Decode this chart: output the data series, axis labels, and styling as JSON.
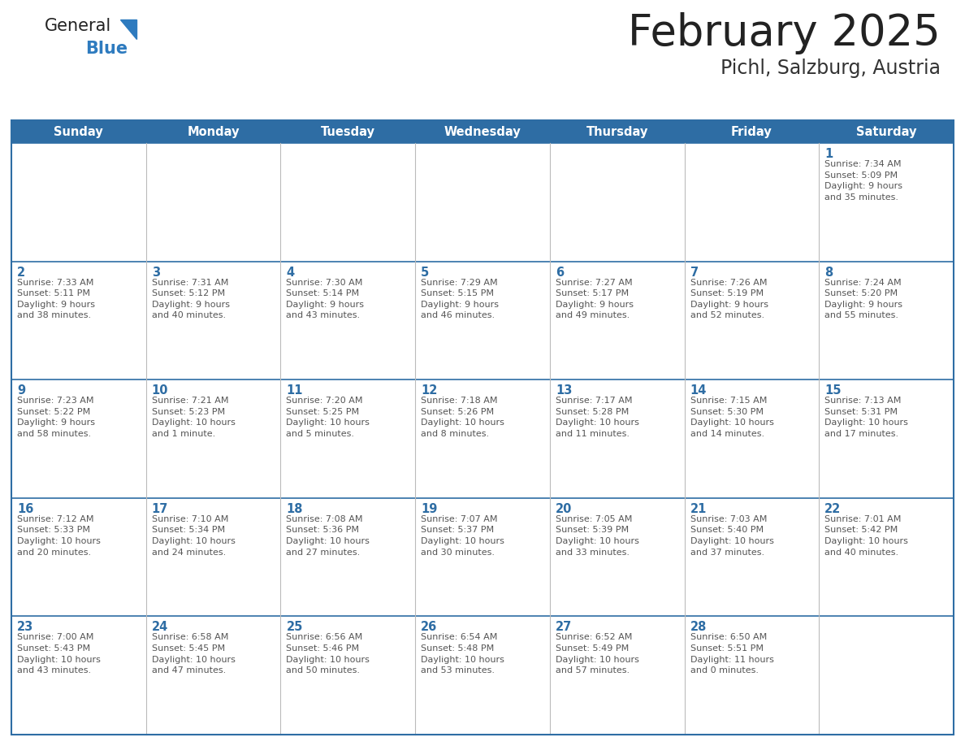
{
  "title": "February 2025",
  "subtitle": "Pichl, Salzburg, Austria",
  "days_of_week": [
    "Sunday",
    "Monday",
    "Tuesday",
    "Wednesday",
    "Thursday",
    "Friday",
    "Saturday"
  ],
  "header_bg": "#2E6DA4",
  "header_text_color": "#FFFFFF",
  "cell_bg": "#FFFFFF",
  "border_color": "#2E6DA4",
  "day_num_color": "#2E6DA4",
  "info_text_color": "#555555",
  "title_color": "#222222",
  "subtitle_color": "#333333",
  "logo_general_color": "#222222",
  "logo_blue_color": "#2E7BBF",
  "weeks": [
    [
      {
        "day": null,
        "info": ""
      },
      {
        "day": null,
        "info": ""
      },
      {
        "day": null,
        "info": ""
      },
      {
        "day": null,
        "info": ""
      },
      {
        "day": null,
        "info": ""
      },
      {
        "day": null,
        "info": ""
      },
      {
        "day": 1,
        "info": "Sunrise: 7:34 AM\nSunset: 5:09 PM\nDaylight: 9 hours\nand 35 minutes."
      }
    ],
    [
      {
        "day": 2,
        "info": "Sunrise: 7:33 AM\nSunset: 5:11 PM\nDaylight: 9 hours\nand 38 minutes."
      },
      {
        "day": 3,
        "info": "Sunrise: 7:31 AM\nSunset: 5:12 PM\nDaylight: 9 hours\nand 40 minutes."
      },
      {
        "day": 4,
        "info": "Sunrise: 7:30 AM\nSunset: 5:14 PM\nDaylight: 9 hours\nand 43 minutes."
      },
      {
        "day": 5,
        "info": "Sunrise: 7:29 AM\nSunset: 5:15 PM\nDaylight: 9 hours\nand 46 minutes."
      },
      {
        "day": 6,
        "info": "Sunrise: 7:27 AM\nSunset: 5:17 PM\nDaylight: 9 hours\nand 49 minutes."
      },
      {
        "day": 7,
        "info": "Sunrise: 7:26 AM\nSunset: 5:19 PM\nDaylight: 9 hours\nand 52 minutes."
      },
      {
        "day": 8,
        "info": "Sunrise: 7:24 AM\nSunset: 5:20 PM\nDaylight: 9 hours\nand 55 minutes."
      }
    ],
    [
      {
        "day": 9,
        "info": "Sunrise: 7:23 AM\nSunset: 5:22 PM\nDaylight: 9 hours\nand 58 minutes."
      },
      {
        "day": 10,
        "info": "Sunrise: 7:21 AM\nSunset: 5:23 PM\nDaylight: 10 hours\nand 1 minute."
      },
      {
        "day": 11,
        "info": "Sunrise: 7:20 AM\nSunset: 5:25 PM\nDaylight: 10 hours\nand 5 minutes."
      },
      {
        "day": 12,
        "info": "Sunrise: 7:18 AM\nSunset: 5:26 PM\nDaylight: 10 hours\nand 8 minutes."
      },
      {
        "day": 13,
        "info": "Sunrise: 7:17 AM\nSunset: 5:28 PM\nDaylight: 10 hours\nand 11 minutes."
      },
      {
        "day": 14,
        "info": "Sunrise: 7:15 AM\nSunset: 5:30 PM\nDaylight: 10 hours\nand 14 minutes."
      },
      {
        "day": 15,
        "info": "Sunrise: 7:13 AM\nSunset: 5:31 PM\nDaylight: 10 hours\nand 17 minutes."
      }
    ],
    [
      {
        "day": 16,
        "info": "Sunrise: 7:12 AM\nSunset: 5:33 PM\nDaylight: 10 hours\nand 20 minutes."
      },
      {
        "day": 17,
        "info": "Sunrise: 7:10 AM\nSunset: 5:34 PM\nDaylight: 10 hours\nand 24 minutes."
      },
      {
        "day": 18,
        "info": "Sunrise: 7:08 AM\nSunset: 5:36 PM\nDaylight: 10 hours\nand 27 minutes."
      },
      {
        "day": 19,
        "info": "Sunrise: 7:07 AM\nSunset: 5:37 PM\nDaylight: 10 hours\nand 30 minutes."
      },
      {
        "day": 20,
        "info": "Sunrise: 7:05 AM\nSunset: 5:39 PM\nDaylight: 10 hours\nand 33 minutes."
      },
      {
        "day": 21,
        "info": "Sunrise: 7:03 AM\nSunset: 5:40 PM\nDaylight: 10 hours\nand 37 minutes."
      },
      {
        "day": 22,
        "info": "Sunrise: 7:01 AM\nSunset: 5:42 PM\nDaylight: 10 hours\nand 40 minutes."
      }
    ],
    [
      {
        "day": 23,
        "info": "Sunrise: 7:00 AM\nSunset: 5:43 PM\nDaylight: 10 hours\nand 43 minutes."
      },
      {
        "day": 24,
        "info": "Sunrise: 6:58 AM\nSunset: 5:45 PM\nDaylight: 10 hours\nand 47 minutes."
      },
      {
        "day": 25,
        "info": "Sunrise: 6:56 AM\nSunset: 5:46 PM\nDaylight: 10 hours\nand 50 minutes."
      },
      {
        "day": 26,
        "info": "Sunrise: 6:54 AM\nSunset: 5:48 PM\nDaylight: 10 hours\nand 53 minutes."
      },
      {
        "day": 27,
        "info": "Sunrise: 6:52 AM\nSunset: 5:49 PM\nDaylight: 10 hours\nand 57 minutes."
      },
      {
        "day": 28,
        "info": "Sunrise: 6:50 AM\nSunset: 5:51 PM\nDaylight: 11 hours\nand 0 minutes."
      },
      {
        "day": null,
        "info": ""
      }
    ]
  ]
}
